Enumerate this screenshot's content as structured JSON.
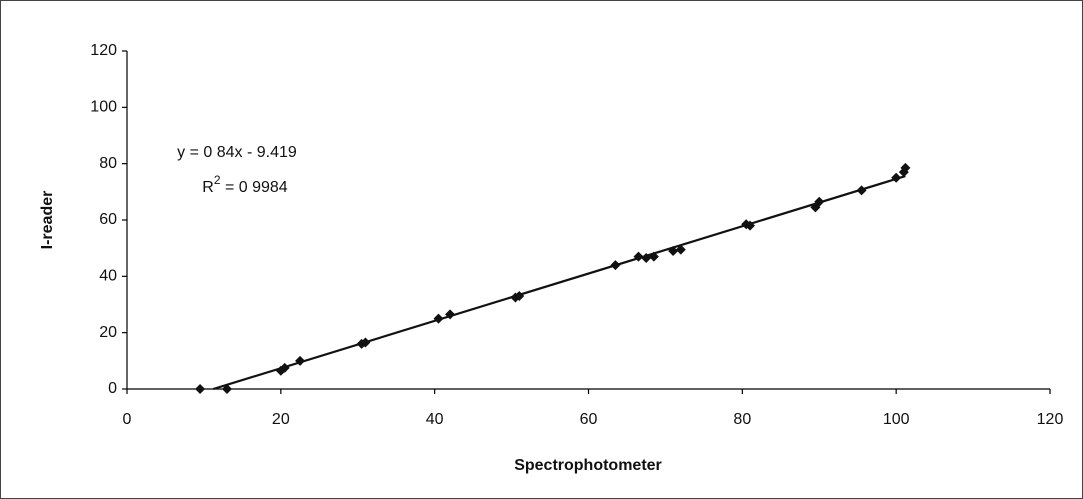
{
  "chart_data": {
    "type": "scatter",
    "x_label": "Spectrophotometer",
    "y_label": "I-reader",
    "x": [
      9.5,
      13,
      20,
      20.5,
      22.5,
      30.5,
      31,
      40.5,
      42,
      50.5,
      51,
      63.5,
      66.5,
      67.5,
      68.5,
      71,
      72,
      80.5,
      81,
      89.5,
      90,
      95.5,
      100,
      101,
      101.2
    ],
    "values": [
      0,
      0,
      6.5,
      7.5,
      10,
      16,
      16.5,
      25,
      26.5,
      32.5,
      33,
      44,
      47,
      46.5,
      47,
      49,
      49.5,
      58.5,
      58,
      64.5,
      66.5,
      70.5,
      75,
      77,
      78.5
    ],
    "color": "#111111",
    "xlim": [
      0,
      120
    ],
    "xticks": [
      0,
      20,
      40,
      60,
      80,
      100,
      120
    ],
    "ylim": [
      0,
      120
    ],
    "yticks": [
      0,
      20,
      40,
      60,
      80,
      100,
      120
    ],
    "trendline": {
      "slope": 0.84,
      "intercept": -9.419,
      "color": "#111111",
      "equation_label": "y = 0 84x - 9.419",
      "r2_label": {
        "base": "R",
        "sup": "2",
        "rest": " = 0 9984"
      }
    }
  }
}
